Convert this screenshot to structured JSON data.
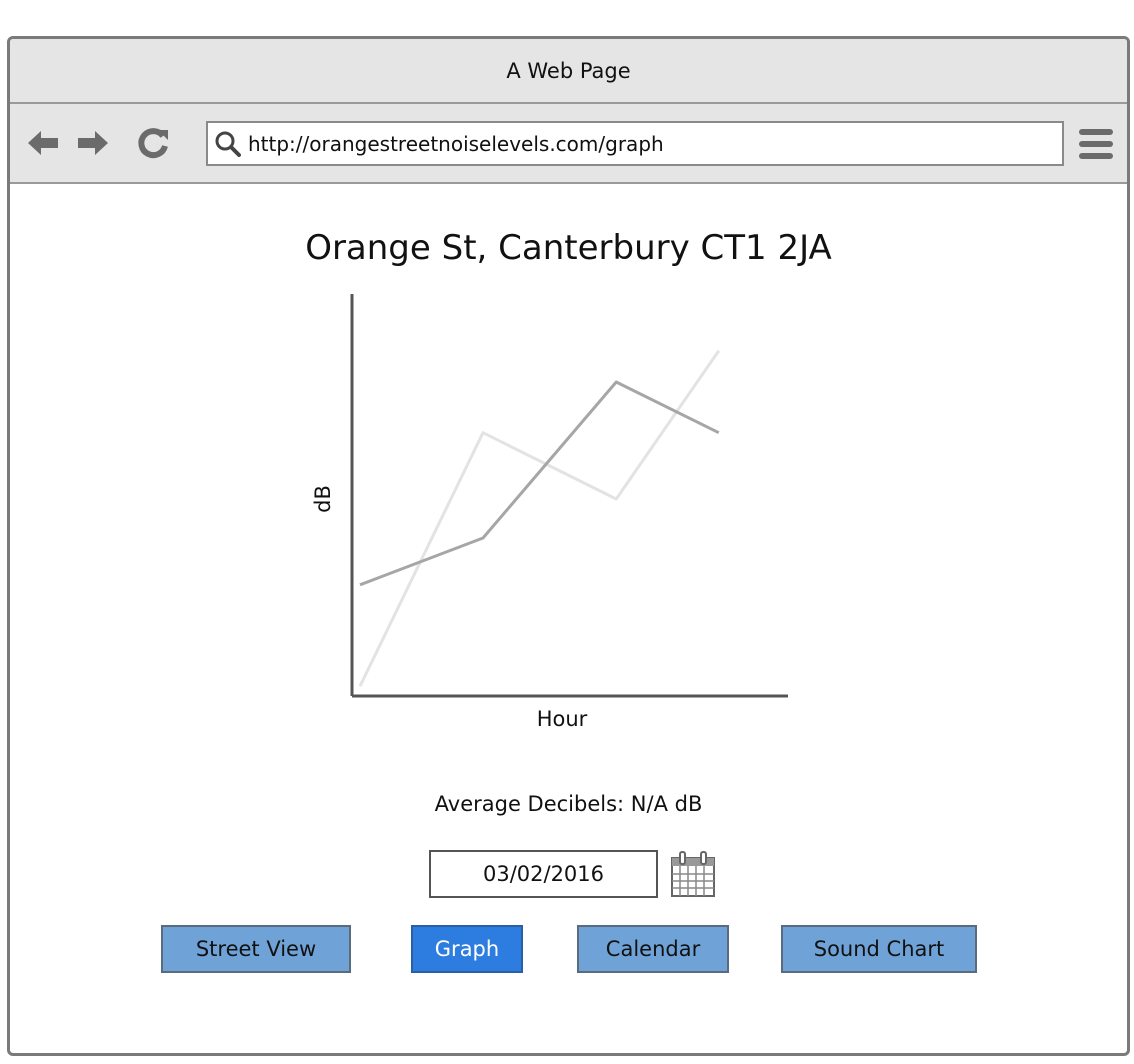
{
  "window": {
    "title": "A Web Page"
  },
  "browser": {
    "url": "http://orangestreetnoiselevels.com/graph",
    "icons": [
      "back-arrow-icon",
      "forward-arrow-icon",
      "reload-icon",
      "search-icon",
      "menu-icon"
    ]
  },
  "page": {
    "heading": "Orange St, Canterbury CT1 2JA",
    "average_label": "Average Decibels: N/A dB",
    "date_value": "03/02/2016"
  },
  "nav": {
    "street_view": "Street View",
    "graph": "Graph",
    "calendar": "Calendar",
    "sound_chart": "Sound Chart"
  },
  "colors": {
    "accent": "#2d7de0",
    "button": "#6fa3d8"
  },
  "chart_data": {
    "type": "line",
    "xlabel": "Hour",
    "ylabel": "dB",
    "xlim": [
      0,
      4
    ],
    "ylim": [
      0,
      10
    ],
    "series": [
      {
        "x": [
          0,
          1.2,
          2.5,
          3.5
        ],
        "values": [
          2.8,
          4.0,
          8.0,
          6.7
        ],
        "color": "#a6a6a6"
      },
      {
        "x": [
          0,
          1.2,
          2.5,
          3.5
        ],
        "values": [
          0.2,
          6.7,
          5.0,
          8.8
        ],
        "color": "#e3e3e3"
      }
    ],
    "grid": false
  }
}
